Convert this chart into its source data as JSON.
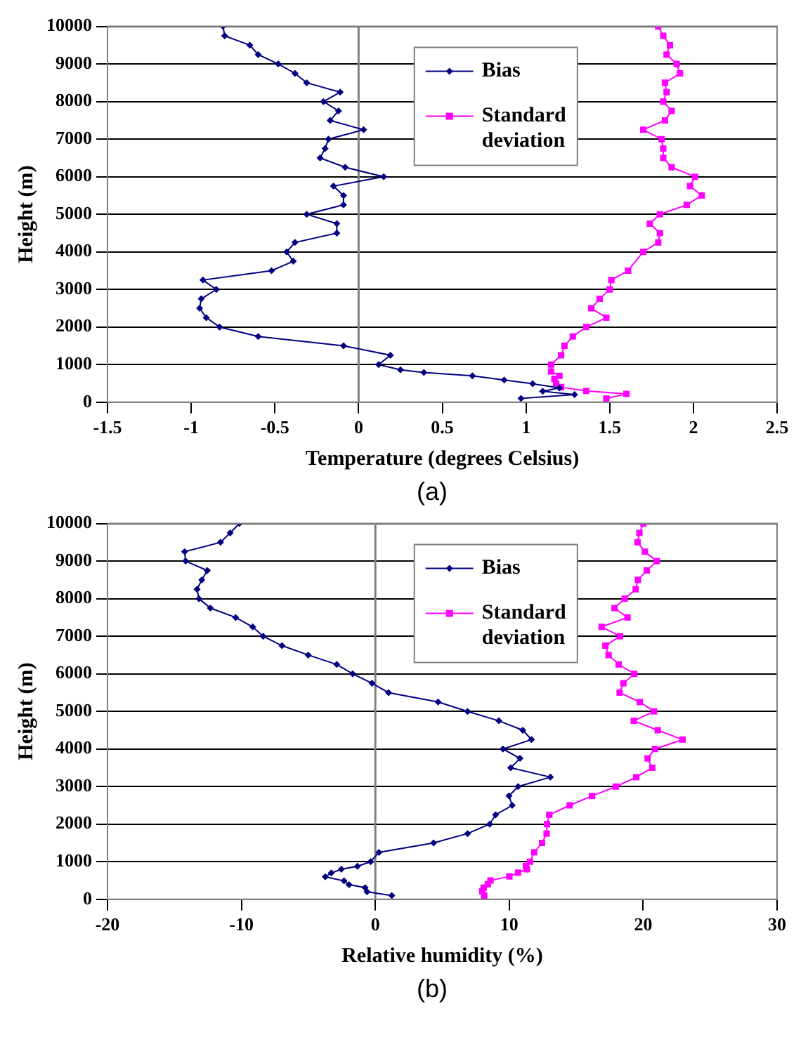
{
  "chart_data": [
    {
      "type": "line",
      "xlabel": "Temperature (degrees Celsius)",
      "ylabel": "Height (m)",
      "annotations": [
        "(a)"
      ],
      "xlim": [
        -1.5,
        2.5
      ],
      "xticks": [
        -1.5,
        -1,
        -0.5,
        0,
        0.5,
        1,
        1.5,
        2,
        2.5
      ],
      "ylim": [
        0,
        10000
      ],
      "yticks": [
        0,
        1000,
        2000,
        3000,
        4000,
        5000,
        6000,
        7000,
        8000,
        9000,
        10000
      ],
      "grid": "y",
      "legend": "top",
      "ref_lines": [
        {
          "axis": "x",
          "value": 0,
          "color": "#808080"
        }
      ],
      "series": [
        {
          "name": "Bias",
          "color": "#000080",
          "marker": "diamond",
          "x": [
            -0.81,
            -0.8,
            -0.65,
            -0.6,
            -0.48,
            -0.38,
            -0.31,
            -0.11,
            -0.21,
            -0.12,
            -0.17,
            0.03,
            -0.18,
            -0.2,
            -0.23,
            -0.08,
            0.15,
            -0.15,
            -0.09,
            -0.09,
            -0.31,
            -0.13,
            -0.13,
            -0.38,
            -0.43,
            -0.39,
            -0.52,
            -0.93,
            -0.85,
            -0.94,
            -0.95,
            -0.91,
            -0.83,
            -0.6,
            -0.09,
            0.19,
            0.12,
            0.25,
            0.39,
            0.68,
            0.87,
            1.04,
            1.2,
            1.1,
            1.29,
            0.97
          ],
          "values": [
            10000,
            9750,
            9500,
            9250,
            9000,
            8750,
            8500,
            8250,
            8000,
            7750,
            7500,
            7250,
            7000,
            6750,
            6500,
            6250,
            6000,
            5750,
            5500,
            5250,
            5000,
            4750,
            4500,
            4250,
            4000,
            3750,
            3500,
            3250,
            3000,
            2750,
            2500,
            2250,
            2000,
            1750,
            1500,
            1250,
            1000,
            860,
            790,
            700,
            590,
            490,
            380,
            290,
            200,
            100
          ]
        },
        {
          "name": "Standard deviation",
          "color": "#ff00ff",
          "marker": "square",
          "x": [
            1.79,
            1.82,
            1.86,
            1.84,
            1.9,
            1.92,
            1.83,
            1.84,
            1.82,
            1.87,
            1.83,
            1.7,
            1.81,
            1.82,
            1.82,
            1.87,
            2.01,
            1.98,
            2.05,
            1.96,
            1.8,
            1.74,
            1.8,
            1.79,
            1.7,
            1.61,
            1.51,
            1.5,
            1.44,
            1.39,
            1.48,
            1.36,
            1.28,
            1.23,
            1.21,
            1.15,
            1.15,
            1.2,
            1.17,
            1.18,
            1.21,
            1.36,
            1.6,
            1.48
          ],
          "values": [
            10000,
            9750,
            9500,
            9250,
            9000,
            8750,
            8500,
            8250,
            8000,
            7750,
            7500,
            7250,
            7000,
            6750,
            6500,
            6250,
            6000,
            5750,
            5500,
            5250,
            5000,
            4750,
            4500,
            4250,
            4000,
            3500,
            3250,
            3000,
            2750,
            2500,
            2250,
            2000,
            1750,
            1500,
            1250,
            1000,
            820,
            700,
            620,
            500,
            400,
            300,
            220,
            100
          ]
        }
      ]
    },
    {
      "type": "line",
      "xlabel": "Relative humidity (%)",
      "ylabel": "Height (m)",
      "annotations": [
        "(b)"
      ],
      "xlim": [
        -20,
        30
      ],
      "xticks": [
        -20,
        -10,
        0,
        10,
        20,
        30
      ],
      "ylim": [
        0,
        10000
      ],
      "yticks": [
        0,
        1000,
        2000,
        3000,
        4000,
        5000,
        6000,
        7000,
        8000,
        9000,
        10000
      ],
      "grid": "y",
      "legend": "top",
      "ref_lines": [
        {
          "axis": "x",
          "value": 0,
          "color": "#808080"
        }
      ],
      "series": [
        {
          "name": "Bias",
          "color": "#000080",
          "marker": "diamond",
          "x": [
            -10.15,
            -10.84,
            -11.56,
            -14.24,
            -14.17,
            -12.55,
            -12.96,
            -13.31,
            -13.17,
            -12.32,
            -10.43,
            -9.16,
            -8.37,
            -6.97,
            -5.01,
            -2.88,
            -1.69,
            -0.25,
            0.99,
            4.69,
            6.89,
            9.22,
            11.01,
            11.66,
            9.53,
            10.8,
            10.11,
            13.07,
            10.66,
            9.98,
            10.22,
            8.98,
            8.54,
            6.89,
            4.35,
            0.27,
            -0.35,
            -1.34,
            -2.54,
            -3.29,
            -3.74,
            -2.34,
            -1.96,
            -0.76,
            -0.62,
            1.23
          ],
          "values": [
            10000,
            9750,
            9500,
            9250,
            9000,
            8750,
            8500,
            8250,
            8000,
            7750,
            7500,
            7250,
            7000,
            6750,
            6500,
            6250,
            6000,
            5750,
            5500,
            5250,
            5000,
            4750,
            4500,
            4250,
            4000,
            3750,
            3500,
            3250,
            3000,
            2750,
            2500,
            2250,
            2000,
            1750,
            1500,
            1250,
            1000,
            880,
            800,
            700,
            600,
            490,
            390,
            310,
            200,
            100
          ]
        },
        {
          "name": "Standard deviation",
          "color": "#ff00ff",
          "marker": "square",
          "x": [
            20.02,
            19.72,
            19.58,
            20.13,
            21.02,
            20.27,
            19.61,
            19.44,
            18.62,
            17.86,
            18.83,
            16.9,
            18.27,
            17.18,
            17.42,
            18.17,
            19.34,
            18.52,
            18.24,
            19.75,
            20.81,
            19.3,
            21.09,
            22.94,
            20.88,
            20.33,
            20.68,
            19.48,
            17.96,
            16.18,
            14.51,
            12.99,
            12.82,
            12.79,
            12.45,
            11.86,
            11.55,
            11.24,
            11.32,
            10.66,
            10.01,
            8.6,
            8.4,
            8.09,
            7.98,
            8.13
          ],
          "values": [
            10000,
            9750,
            9500,
            9250,
            9000,
            8750,
            8500,
            8250,
            8000,
            7750,
            7500,
            7250,
            7000,
            6750,
            6500,
            6250,
            6000,
            5750,
            5500,
            5250,
            5000,
            4750,
            4500,
            4250,
            4000,
            3750,
            3500,
            3250,
            3000,
            2750,
            2500,
            2250,
            2000,
            1750,
            1500,
            1250,
            1000,
            890,
            800,
            710,
            610,
            500,
            400,
            310,
            210,
            100
          ]
        }
      ]
    }
  ]
}
